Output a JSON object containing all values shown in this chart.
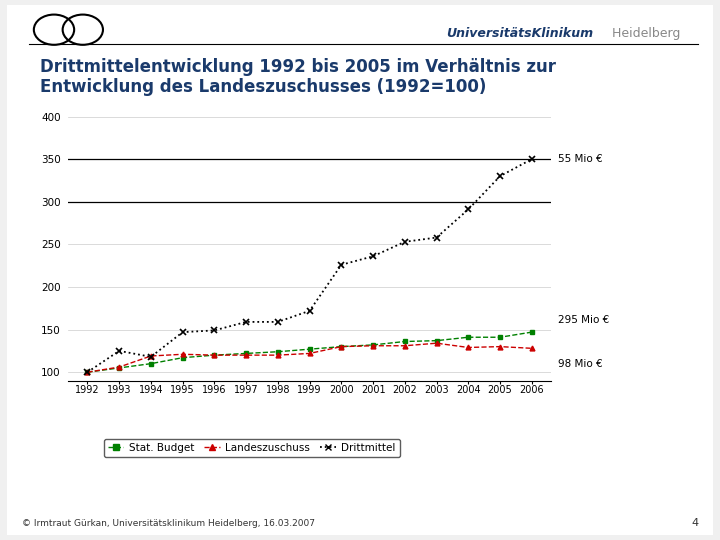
{
  "title_line1": "Drittmittelentwicklung 1992 bis 2005 im Verhältnis zur",
  "title_line2": "Entwicklung des Landeszuschusses (1992=100)",
  "title_color": "#1a3a6b",
  "background_color": "#f0f0f0",
  "chart_bg": "#ffffff",
  "years": [
    1992,
    1993,
    1994,
    1995,
    1996,
    1997,
    1998,
    1999,
    2000,
    2001,
    2002,
    2003,
    2004,
    2005,
    2006
  ],
  "stat_budget": [
    100,
    105,
    110,
    117,
    120,
    122,
    124,
    127,
    130,
    132,
    136,
    137,
    141,
    141,
    147
  ],
  "landeszuschuss": [
    100,
    106,
    119,
    121,
    120,
    120,
    120,
    122,
    130,
    131,
    131,
    134,
    129,
    130,
    128
  ],
  "drittmittel": [
    100,
    125,
    118,
    147,
    149,
    159,
    159,
    172,
    226,
    236,
    253,
    258,
    291,
    330,
    350
  ],
  "stat_budget_color": "#008000",
  "landeszuschuss_color": "#cc0000",
  "drittmittel_color": "#000000",
  "ylim_min": 90,
  "ylim_max": 410,
  "yticks": [
    100,
    150,
    200,
    250,
    300,
    350,
    400
  ],
  "annotation_55": "55 Mio €",
  "annotation_295": "295 Mio €",
  "annotation_98": "98 Mio €",
  "hline_350": 350,
  "hline_300": 300,
  "legend_stat": "Stat. Budget",
  "legend_land": "Landeszuschuss",
  "legend_dritt": "Drittmittel",
  "footer_text": "© Irmtraut Gürkan, Universitätsklinikum Heidelberg, 16.03.2007",
  "page_number": "4",
  "header_text1": "UniversitätsKlinikum",
  "header_text2": " Heidelberg"
}
